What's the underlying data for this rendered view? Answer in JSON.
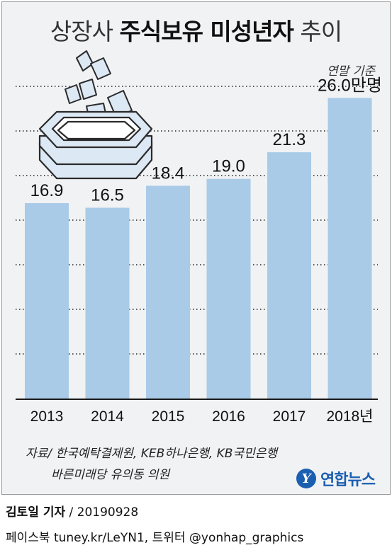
{
  "header": {
    "title_light_1": "상장사",
    "title_bold": "주식보유 미성년자",
    "title_light_2": "추이",
    "unit_note": "연말 기준"
  },
  "chart_data": {
    "type": "bar",
    "categories": [
      "2013",
      "2014",
      "2015",
      "2016",
      "2017",
      "2018년"
    ],
    "values": [
      16.9,
      16.5,
      18.4,
      19.0,
      21.3,
      26.0
    ],
    "value_labels": [
      "16.9",
      "16.5",
      "18.4",
      "19.0",
      "21.3",
      "26.0만명"
    ],
    "ylim": [
      0,
      27
    ],
    "grid": true,
    "bar_color": "#a9cbe8"
  },
  "source": {
    "line1": "자료/ 한국예탁결제원, KEB하나은행, KB국민은행",
    "line2": "바른미래당 유의동 의원"
  },
  "logo": {
    "mark": "Y",
    "text": "연합뉴스",
    "color": "#1b5fb0"
  },
  "footer": {
    "reporter": "김토일 기자",
    "date": "/ 20190928",
    "social": "페이스북 tuney.kr/LeYN1, 트위터 @yonhap_graphics"
  }
}
